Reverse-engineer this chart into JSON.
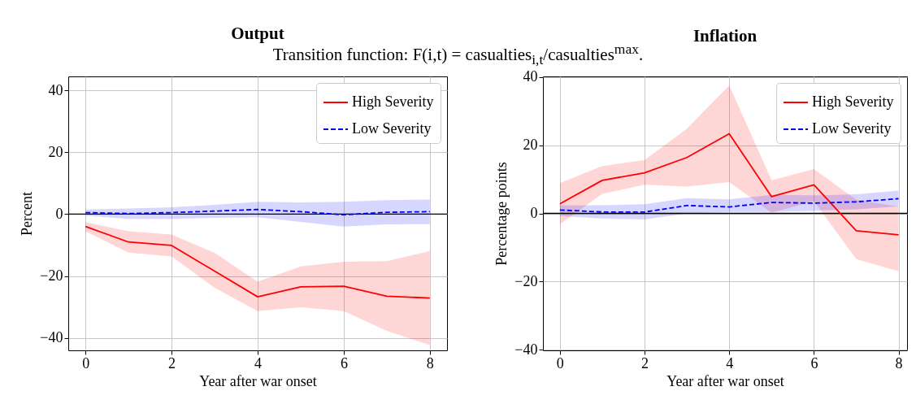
{
  "chart_data": [
    {
      "type": "line",
      "title": "Output",
      "subtitle": "Transition function: F(i,t) = casualties$_{i,t}$/casualties$^{max}$.",
      "xlabel": "Year after war onset",
      "ylabel": "Percent",
      "x": [
        0,
        1,
        2,
        3,
        4,
        5,
        6,
        7,
        8
      ],
      "xlim": [
        -0.4,
        8.4
      ],
      "xticks": [
        0,
        2,
        4,
        6,
        8
      ],
      "ylim": [
        -44,
        44.5
      ],
      "yticks": [
        -40,
        -20,
        0,
        20,
        40
      ],
      "grid": true,
      "legend": "top right",
      "ref_lines": [
        {
          "axis": "y",
          "value": 0,
          "color": "#000000"
        }
      ],
      "series": [
        {
          "name": "High Severity",
          "color": "#ff0000",
          "line_style": "solid",
          "values": [
            -4.0,
            -9.0,
            -10.1,
            -18.4,
            -26.7,
            -23.5,
            -23.3,
            -26.5,
            -27.1
          ],
          "lower": [
            -5.5,
            -12.4,
            -13.7,
            -23.8,
            -31.3,
            -30.1,
            -31.3,
            -37.7,
            -42.3
          ],
          "upper": [
            -2.6,
            -5.5,
            -6.6,
            -12.5,
            -21.8,
            -16.9,
            -15.4,
            -15.2,
            -11.9
          ]
        },
        {
          "name": "Low Severity",
          "color": "#0000ff",
          "line_style": "dashed",
          "values": [
            0.5,
            0.2,
            0.5,
            1.0,
            1.5,
            0.8,
            -0.2,
            0.6,
            0.8
          ],
          "lower": [
            -0.5,
            -1.5,
            -1.5,
            -1.2,
            -1.0,
            -2.5,
            -4.0,
            -3.3,
            -3.2
          ],
          "upper": [
            1.5,
            1.8,
            2.2,
            3.0,
            4.0,
            3.8,
            4.0,
            4.5,
            4.7
          ]
        }
      ]
    },
    {
      "type": "line",
      "title": "Inflation",
      "xlabel": "Year after war onset",
      "ylabel": "Percentage points",
      "x": [
        0,
        1,
        2,
        3,
        4,
        5,
        6,
        7,
        8
      ],
      "xlim": [
        -0.4,
        8.2
      ],
      "xticks": [
        0,
        2,
        4,
        6,
        8
      ],
      "ylim": [
        -40.2,
        40.2
      ],
      "yticks": [
        -40,
        -20,
        0,
        20,
        40
      ],
      "grid": true,
      "legend": "top right",
      "ref_lines": [
        {
          "axis": "y",
          "value": 0,
          "color": "#000000"
        }
      ],
      "series": [
        {
          "name": "High Severity",
          "color": "#ff0000",
          "line_style": "solid",
          "values": [
            2.8,
            9.7,
            11.9,
            16.4,
            23.4,
            4.9,
            8.4,
            -5.1,
            -6.3
          ],
          "lower": [
            -3.2,
            5.7,
            8.4,
            7.9,
            9.2,
            0.2,
            3.6,
            -13.4,
            -17.0
          ],
          "upper": [
            8.9,
            13.9,
            15.6,
            24.9,
            37.6,
            9.7,
            13.0,
            4.0,
            2.0
          ]
        },
        {
          "name": "Low Severity",
          "color": "#0000ff",
          "line_style": "dashed",
          "values": [
            1.0,
            0.4,
            0.4,
            2.3,
            1.9,
            3.2,
            3.0,
            3.4,
            4.3
          ],
          "lower": [
            -0.8,
            -1.5,
            -1.8,
            0.0,
            0.4,
            0.4,
            0.8,
            1.2,
            2.0
          ],
          "upper": [
            2.4,
            2.4,
            2.7,
            4.5,
            4.1,
            5.4,
            5.3,
            5.6,
            6.7
          ]
        }
      ]
    }
  ]
}
